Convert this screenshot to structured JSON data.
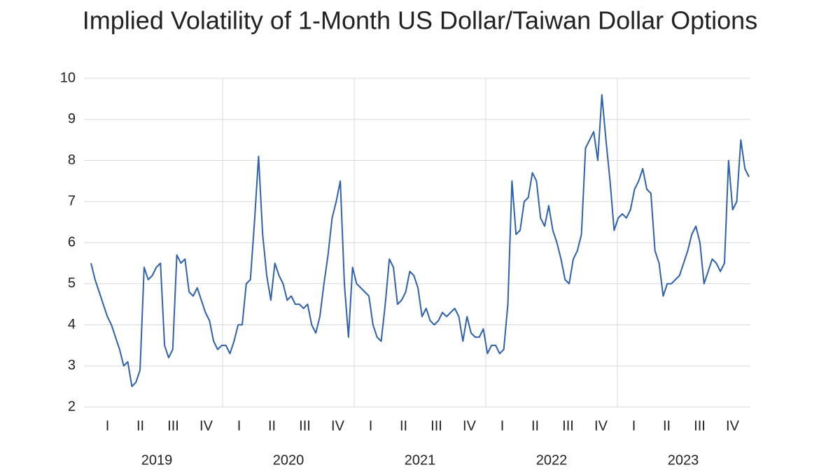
{
  "chart_data": {
    "type": "line",
    "title": "Implied Volatility of 1-Month US Dollar/Taiwan Dollar Options",
    "quarters": [
      "I",
      "II",
      "III",
      "IV",
      "I",
      "II",
      "III",
      "IV",
      "I",
      "II",
      "III",
      "IV",
      "I",
      "II",
      "III",
      "IV",
      "I",
      "II",
      "III",
      "IV"
    ],
    "years": [
      "2019",
      "2020",
      "2021",
      "2022",
      "2023"
    ],
    "ylim": [
      2,
      10
    ],
    "yticks": [
      2,
      3,
      4,
      5,
      6,
      7,
      8,
      9,
      10
    ],
    "grid": true,
    "series": [
      {
        "color": "#2e62b0",
        "values": [
          5.5,
          5.1,
          4.8,
          4.5,
          4.2,
          4.0,
          3.7,
          3.4,
          3.0,
          3.1,
          2.5,
          2.6,
          2.9,
          5.4,
          5.1,
          5.2,
          5.4,
          5.5,
          3.5,
          3.2,
          3.4,
          5.7,
          5.5,
          5.6,
          4.8,
          4.7,
          4.9,
          4.6,
          4.3,
          4.1,
          3.6,
          3.4,
          3.5,
          3.5,
          3.3,
          3.6,
          4.0,
          4.0,
          5.0,
          5.1,
          6.5,
          8.1,
          6.2,
          5.2,
          4.6,
          5.5,
          5.2,
          5.0,
          4.6,
          4.7,
          4.5,
          4.5,
          4.4,
          4.5,
          4.0,
          3.8,
          4.2,
          5.0,
          5.7,
          6.6,
          7.0,
          7.5,
          5.0,
          3.7,
          5.4,
          5.0,
          4.9,
          4.8,
          4.7,
          4.0,
          3.7,
          3.6,
          4.5,
          5.6,
          5.4,
          4.5,
          4.6,
          4.8,
          5.3,
          5.2,
          4.9,
          4.2,
          4.4,
          4.1,
          4.0,
          4.1,
          4.3,
          4.2,
          4.3,
          4.4,
          4.2,
          3.6,
          4.2,
          3.8,
          3.7,
          3.7,
          3.9,
          3.3,
          3.5,
          3.5,
          3.3,
          3.4,
          4.5,
          7.5,
          6.2,
          6.3,
          7.0,
          7.1,
          7.7,
          7.5,
          6.6,
          6.4,
          6.9,
          6.3,
          6.0,
          5.6,
          5.1,
          5.0,
          5.6,
          5.8,
          6.2,
          8.3,
          8.5,
          8.7,
          8.0,
          9.6,
          8.5,
          7.5,
          6.3,
          6.6,
          6.7,
          6.6,
          6.8,
          7.3,
          7.5,
          7.8,
          7.3,
          7.2,
          5.8,
          5.5,
          4.7,
          5.0,
          5.0,
          5.1,
          5.2,
          5.5,
          5.8,
          6.2,
          6.4,
          6.0,
          5.0,
          5.3,
          5.6,
          5.5,
          5.3,
          5.5,
          8.0,
          6.8,
          7.0,
          8.5,
          7.8,
          7.6
        ]
      }
    ]
  }
}
